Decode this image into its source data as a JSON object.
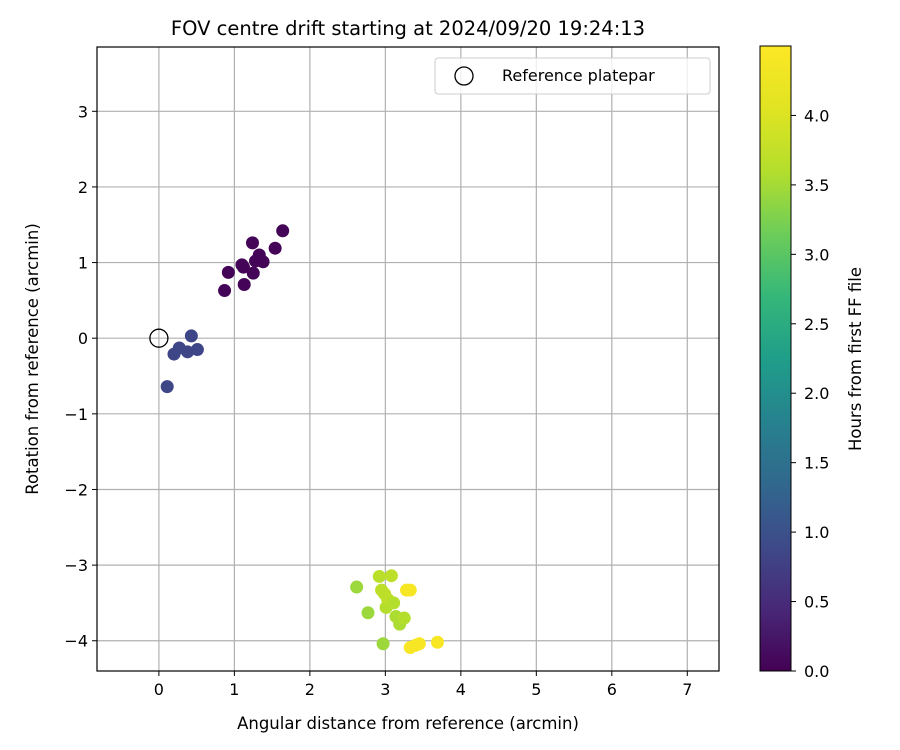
{
  "chart_data": {
    "type": "scatter",
    "title": "FOV centre drift starting at 2024/09/20 19:24:13",
    "xlabel": "Angular distance from reference (arcmin)",
    "ylabel": "Rotation from reference (arcmin)",
    "xlim": [
      -0.82,
      7.42
    ],
    "ylim": [
      -4.4,
      3.85
    ],
    "xticks": [
      0,
      1,
      2,
      3,
      4,
      5,
      6,
      7
    ],
    "yticks": [
      -4,
      -3,
      -2,
      -1,
      0,
      1,
      2,
      3
    ],
    "grid": true,
    "legend": {
      "placement": "top-right",
      "entries": [
        "Reference platepar"
      ]
    },
    "reference_point": {
      "x": 0,
      "y": 0,
      "label": "Reference platepar"
    },
    "colorbar": {
      "label": "Hours from first FF file",
      "colormap": "viridis",
      "range": [
        0,
        4.5
      ],
      "ticks": [
        0.0,
        0.5,
        1.0,
        1.5,
        2.0,
        2.5,
        3.0,
        3.5,
        4.0
      ],
      "tick_labels": [
        "0.0",
        "0.5",
        "1.0",
        "1.5",
        "2.0",
        "2.5",
        "3.0",
        "3.5",
        "4.0"
      ]
    },
    "points": [
      {
        "x": 0.87,
        "y": 0.63,
        "t": 0.05
      },
      {
        "x": 0.92,
        "y": 0.87,
        "t": 0.05
      },
      {
        "x": 1.1,
        "y": 0.97,
        "t": 0.05
      },
      {
        "x": 1.12,
        "y": 0.94,
        "t": 0.05
      },
      {
        "x": 1.13,
        "y": 0.71,
        "t": 0.05
      },
      {
        "x": 1.24,
        "y": 1.26,
        "t": 0.05
      },
      {
        "x": 1.25,
        "y": 0.86,
        "t": 0.05
      },
      {
        "x": 1.28,
        "y": 1.02,
        "t": 0.05
      },
      {
        "x": 1.33,
        "y": 1.1,
        "t": 0.05
      },
      {
        "x": 1.38,
        "y": 1.01,
        "t": 0.05
      },
      {
        "x": 1.54,
        "y": 1.19,
        "t": 0.05
      },
      {
        "x": 1.64,
        "y": 1.42,
        "t": 0.05
      },
      {
        "x": 0.11,
        "y": -0.64,
        "t": 0.85
      },
      {
        "x": 0.2,
        "y": -0.21,
        "t": 0.85
      },
      {
        "x": 0.27,
        "y": -0.13,
        "t": 0.85
      },
      {
        "x": 0.38,
        "y": -0.18,
        "t": 0.85
      },
      {
        "x": 0.43,
        "y": 0.03,
        "t": 0.85
      },
      {
        "x": 0.51,
        "y": -0.15,
        "t": 0.85
      },
      {
        "x": 2.62,
        "y": -3.29,
        "t": 3.45
      },
      {
        "x": 2.77,
        "y": -3.63,
        "t": 3.45
      },
      {
        "x": 2.92,
        "y": -3.15,
        "t": 3.65
      },
      {
        "x": 2.95,
        "y": -3.33,
        "t": 3.7
      },
      {
        "x": 2.97,
        "y": -4.04,
        "t": 3.45
      },
      {
        "x": 2.99,
        "y": -3.38,
        "t": 3.7
      },
      {
        "x": 3.01,
        "y": -3.56,
        "t": 3.6
      },
      {
        "x": 3.03,
        "y": -3.45,
        "t": 3.7
      },
      {
        "x": 3.08,
        "y": -3.14,
        "t": 3.7
      },
      {
        "x": 3.11,
        "y": -3.5,
        "t": 3.6
      },
      {
        "x": 3.14,
        "y": -3.68,
        "t": 3.55
      },
      {
        "x": 3.19,
        "y": -3.78,
        "t": 3.55
      },
      {
        "x": 3.25,
        "y": -3.7,
        "t": 3.6
      },
      {
        "x": 3.28,
        "y": -3.33,
        "t": 4.4
      },
      {
        "x": 3.33,
        "y": -3.33,
        "t": 4.4
      },
      {
        "x": 3.33,
        "y": -4.09,
        "t": 4.4
      },
      {
        "x": 3.4,
        "y": -4.06,
        "t": 4.4
      },
      {
        "x": 3.45,
        "y": -4.04,
        "t": 4.4
      },
      {
        "x": 3.69,
        "y": -4.02,
        "t": 4.4
      }
    ]
  }
}
